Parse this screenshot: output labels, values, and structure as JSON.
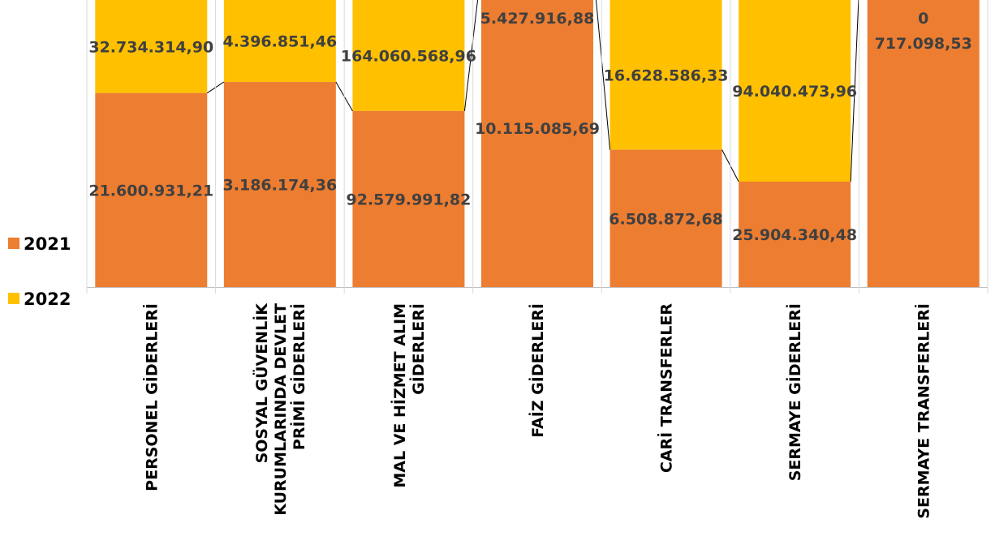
{
  "chart_data": {
    "type": "bar",
    "stacked": "percent",
    "categories": [
      [
        "PERSONEL GİDERLERİ"
      ],
      [
        "SOSYAL GÜVENLİK",
        "KURUMLARINDA DEVLET",
        "PRİMİ GİDERLERİ"
      ],
      [
        "MAL VE HİZMET ALIM",
        "GİDERLERİ"
      ],
      [
        "FAİZ GİDERLERİ"
      ],
      [
        "CARİ TRANSFERLER"
      ],
      [
        "SERMAYE GİDERLERİ"
      ],
      [
        "SERMAYE TRANSFERLERİ"
      ]
    ],
    "series": [
      {
        "name": "2021",
        "color": "#ED7D31",
        "values": [
          21600931.21,
          3186174.36,
          92579991.82,
          10115085.69,
          6508872.68,
          25904340.48,
          717098.53
        ],
        "labels": [
          "21.600.931,21",
          "3.186.174,36",
          "92.579.991,82",
          "10.115.085,69",
          "6.508.872,68",
          "25.904.340,48",
          "717.098,53"
        ]
      },
      {
        "name": "2022",
        "color": "#FFC000",
        "values": [
          32734314.9,
          4396851.46,
          164060568.96,
          5427916.88,
          16628586.33,
          94040473.96,
          0
        ],
        "labels": [
          "32.734.314,90",
          "4.396.851,46",
          "164.060.568,96",
          "5.427.916,88",
          "16.628.586,33",
          "94.040.473,96",
          "0"
        ]
      }
    ],
    "legend_position": "left",
    "series_lines": true,
    "grid": false
  }
}
